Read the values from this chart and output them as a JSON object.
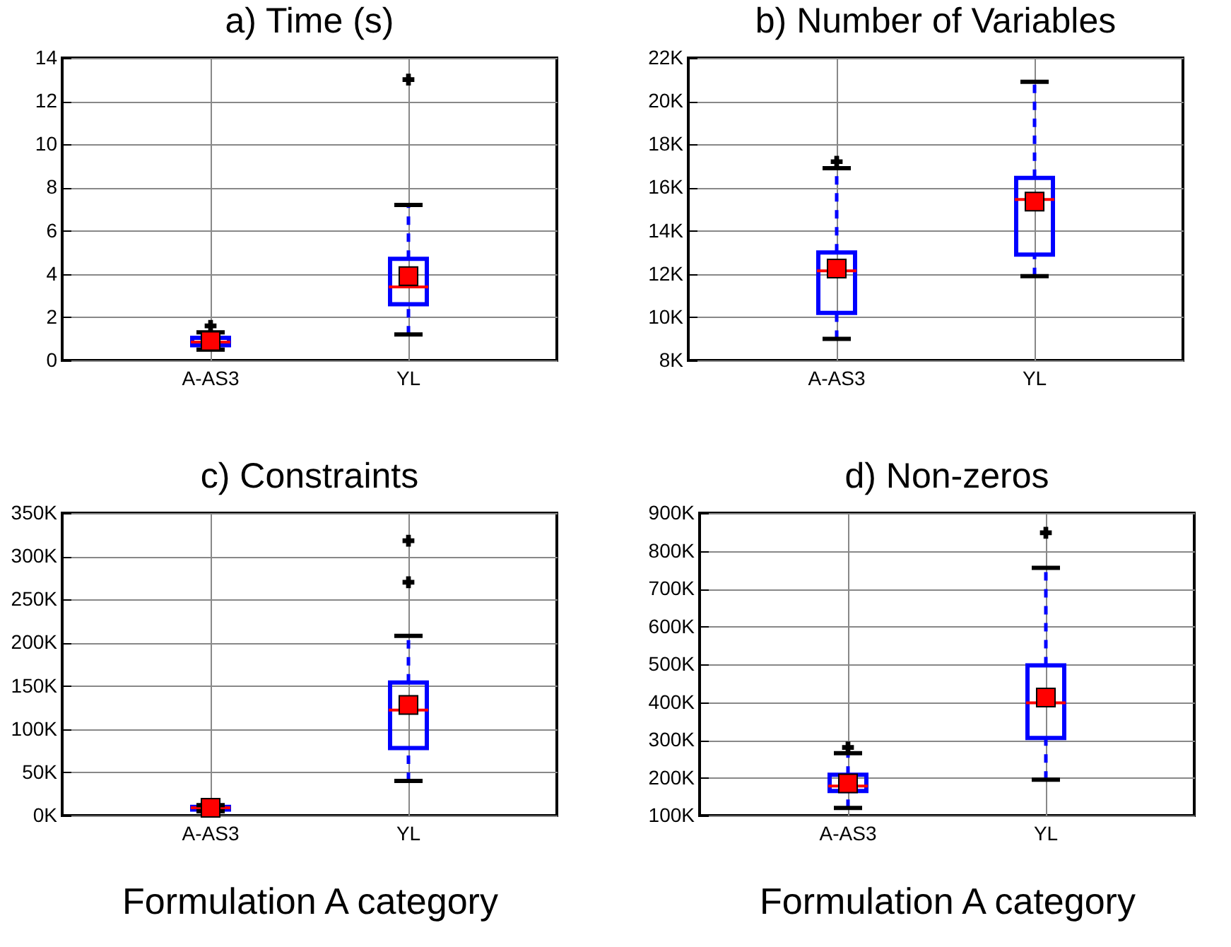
{
  "chart_data": [
    {
      "type": "box",
      "title": "a) Time (s)",
      "categories": [
        "A-AS3",
        "YL"
      ],
      "ylim": [
        0,
        14
      ],
      "yticks": [
        0,
        2,
        4,
        6,
        8,
        10,
        12,
        14
      ],
      "grid": true,
      "marker": "square",
      "series": [
        {
          "color": "#0000ff",
          "boxes": [
            {
              "low": 0.5,
              "q1": 0.7,
              "median": 0.85,
              "q3": 1.05,
              "high": 1.3,
              "mean": 0.9,
              "outliers": [
                1.6
              ]
            },
            {
              "low": 1.2,
              "q1": 2.6,
              "median": 3.4,
              "q3": 4.7,
              "high": 7.2,
              "mean": 3.9,
              "outliers": [
                13
              ]
            }
          ]
        }
      ]
    },
    {
      "type": "box",
      "title": "b) Number of Variables",
      "categories": [
        "A-AS3",
        "YL"
      ],
      "ylim": [
        8000,
        22000
      ],
      "yticks": [
        {
          "value": 8000,
          "label": "8K"
        },
        {
          "value": 10000,
          "label": "10K"
        },
        {
          "value": 12000,
          "label": "12K"
        },
        {
          "value": 14000,
          "label": "14K"
        },
        {
          "value": 16000,
          "label": "16K"
        },
        {
          "value": 18000,
          "label": "18K"
        },
        {
          "value": 20000,
          "label": "20K"
        },
        {
          "value": 22000,
          "label": "22K"
        }
      ],
      "grid": true,
      "marker": "square",
      "series": [
        {
          "color": "#0000ff",
          "boxes": [
            {
              "low": 9000,
              "q1": 10200,
              "median": 12150,
              "q3": 13000,
              "high": 16900,
              "mean": 12250,
              "outliers": [
                17200
              ]
            },
            {
              "low": 11900,
              "q1": 12900,
              "median": 15450,
              "q3": 16450,
              "high": 20900,
              "mean": 15350
            }
          ]
        }
      ]
    },
    {
      "type": "box",
      "title": "c) Constraints",
      "xlabel": "Formulation A category",
      "categories": [
        "A-AS3",
        "YL"
      ],
      "ylim": [
        0,
        350000
      ],
      "yticks": [
        {
          "value": 0,
          "label": "0K"
        },
        {
          "value": 50000,
          "label": "50K"
        },
        {
          "value": 100000,
          "label": "100K"
        },
        {
          "value": 150000,
          "label": "150K"
        },
        {
          "value": 200000,
          "label": "200K"
        },
        {
          "value": 250000,
          "label": "250K"
        },
        {
          "value": 300000,
          "label": "300K"
        },
        {
          "value": 350000,
          "label": "350K"
        }
      ],
      "grid": true,
      "marker": "square",
      "series": [
        {
          "color": "#0000ff",
          "boxes": [
            {
              "low": 5000,
              "q1": 7000,
              "median": 9000,
              "q3": 10000,
              "high": 12000,
              "mean": 9000
            },
            {
              "low": 40000,
              "q1": 78000,
              "median": 122000,
              "q3": 154000,
              "high": 208000,
              "mean": 128000,
              "outliers": [
                270000,
                318000
              ]
            }
          ]
        }
      ]
    },
    {
      "type": "box",
      "title": "d) Non-zeros",
      "xlabel": "Formulation A category",
      "categories": [
        "A-AS3",
        "YL"
      ],
      "ylim": [
        100000,
        900000
      ],
      "yticks": [
        {
          "value": 100000,
          "label": "100K"
        },
        {
          "value": 200000,
          "label": "200K"
        },
        {
          "value": 300000,
          "label": "300K"
        },
        {
          "value": 400000,
          "label": "400K"
        },
        {
          "value": 500000,
          "label": "500K"
        },
        {
          "value": 600000,
          "label": "600K"
        },
        {
          "value": 700000,
          "label": "700K"
        },
        {
          "value": 800000,
          "label": "800K"
        },
        {
          "value": 900000,
          "label": "900K"
        }
      ],
      "grid": true,
      "marker": "square",
      "series": [
        {
          "color": "#0000ff",
          "boxes": [
            {
              "low": 120000,
              "q1": 165000,
              "median": 178000,
              "q3": 208000,
              "high": 265000,
              "mean": 185000,
              "outliers": [
                280000
              ]
            },
            {
              "low": 195000,
              "q1": 305000,
              "median": 398000,
              "q3": 497000,
              "high": 755000,
              "mean": 412000,
              "outliers": [
                848000
              ]
            }
          ]
        }
      ]
    }
  ]
}
